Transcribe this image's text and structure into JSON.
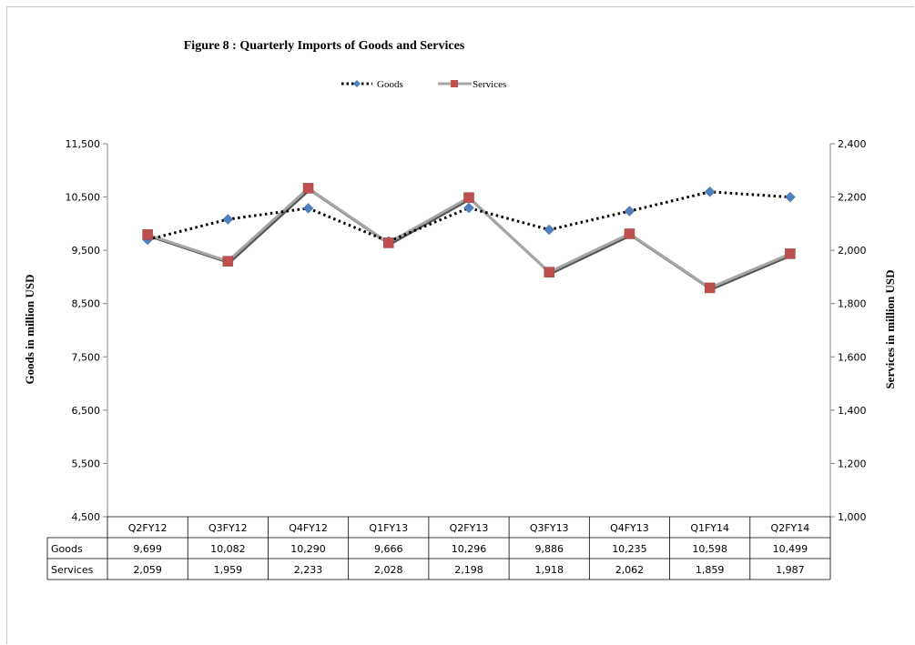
{
  "chart_data": {
    "type": "line",
    "title": "Figure  8 : Quarterly Imports of Goods and Services",
    "categories": [
      "Q2FY12",
      "Q3FY12",
      "Q4FY12",
      "Q1FY13",
      "Q2FY13",
      "Q3FY13",
      "Q4FY13",
      "Q1FY14",
      "Q2FY14"
    ],
    "series": [
      {
        "name": "Goods",
        "axis": "left",
        "values": [
          9699,
          10082,
          10290,
          9666,
          10296,
          9886,
          10235,
          10598,
          10499
        ],
        "labels": [
          "9,699",
          "10,082",
          "10,290",
          "9,666",
          "10,296",
          "9,886",
          "10,235",
          "10,598",
          "10,499"
        ],
        "color": "#4f81bd",
        "line_color": "#000000",
        "line_style": "dotted",
        "marker": "diamond"
      },
      {
        "name": "Services",
        "axis": "right",
        "values": [
          2059,
          1959,
          2233,
          2028,
          2198,
          1918,
          2062,
          1859,
          1987
        ],
        "labels": [
          "2,059",
          "1,959",
          "2,233",
          "2,028",
          "2,198",
          "1,918",
          "2,062",
          "1,859",
          "1,987"
        ],
        "color": "#c0504d",
        "line_color": "#a6a6a6",
        "line_style": "solid",
        "marker": "square"
      }
    ],
    "ylabel": "Goods in million USD",
    "y2label": "Services in million  USD",
    "ylim": [
      4500,
      11500
    ],
    "y2lim": [
      1000,
      2400
    ],
    "yticks": [
      "4,500",
      "5,500",
      "6,500",
      "7,500",
      "8,500",
      "9,500",
      "10,500",
      "11,500"
    ],
    "y2ticks": [
      "1,000",
      "1,200",
      "1,400",
      "1,600",
      "1,800",
      "2,000",
      "2,200",
      "2,400"
    ],
    "grid": false,
    "legend": "top",
    "data_table": true
  }
}
